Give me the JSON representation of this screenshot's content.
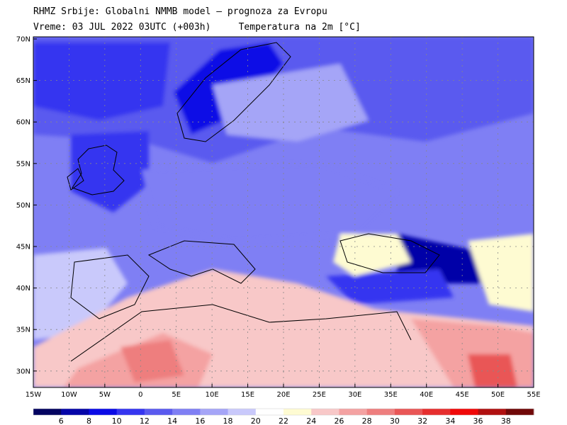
{
  "header": {
    "line1": "RHMZ Srbije: Globalni NMMB model — prognoza za Evropu",
    "line2_time": "Vreme: 03 JUL 2022 03UTC (+003h)",
    "line2_field": "Temperatura na 2m [°C]"
  },
  "axes": {
    "lat_labels": [
      "70N",
      "65N",
      "60N",
      "55N",
      "50N",
      "45N",
      "40N",
      "35N",
      "30N"
    ],
    "lon_labels": [
      "15W",
      "10W",
      "5W",
      "0",
      "5E",
      "10E",
      "15E",
      "20E",
      "25E",
      "30E",
      "35E",
      "40E",
      "45E",
      "50E",
      "55E"
    ]
  },
  "colorbar": {
    "labels": [
      "6",
      "8",
      "10",
      "12",
      "14",
      "16",
      "18",
      "20",
      "22",
      "24",
      "26",
      "28",
      "30",
      "32",
      "34",
      "36",
      "38"
    ],
    "colors": [
      "#040460",
      "#0505a8",
      "#0a0ae6",
      "#3535f0",
      "#5a5aef",
      "#7f7ff4",
      "#a5a5f7",
      "#c9c9fb",
      "#ffffff",
      "#fefbd2",
      "#f8c8c8",
      "#f4a2a2",
      "#ee7e7e",
      "#e95656",
      "#e62e2e",
      "#f00808",
      "#b01010",
      "#700808"
    ]
  },
  "field": {
    "background_color": "#7f7ff4"
  }
}
